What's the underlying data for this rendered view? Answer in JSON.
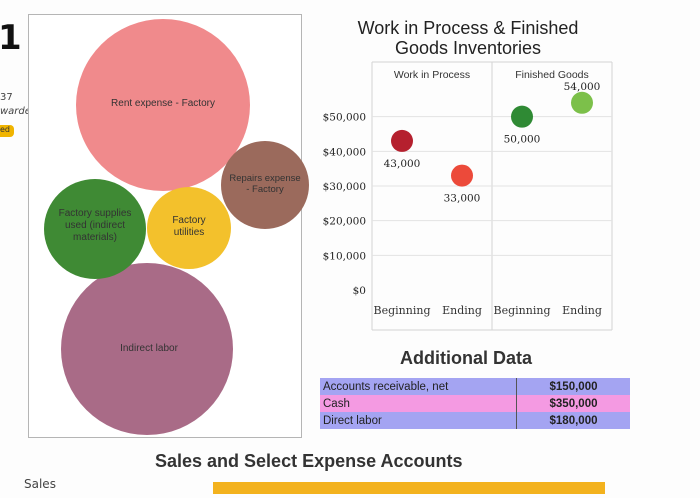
{
  "background_strip": {
    "partial_number": "1",
    "partial_count": "37",
    "partial_word": "warded",
    "badge_text": "ed",
    "sales_label": "Sales"
  },
  "colors": {
    "rent": "#f08a8c",
    "factory_supplies": "#3f8a34",
    "factory_utilities": "#f3c12c",
    "repairs": "#9b6a5c",
    "indirect_labor": "#a96b87",
    "wip_beginning": "#b5202e",
    "wip_ending": "#ec4a3a",
    "fg_beginning": "#2f8a34",
    "fg_ending": "#7cc04a",
    "row_1": "#a4a4f2",
    "row_2": "#f49ae2",
    "row_3": "#a4a4f2",
    "accent_bar": "#f3b21e"
  },
  "chart_data": [
    {
      "type": "bubble",
      "title": "",
      "series": [
        {
          "name": "Rent expense - Factory",
          "size": 1.0
        },
        {
          "name": "Factory supplies used (indirect materials)",
          "size": 0.35
        },
        {
          "name": "Factory utilities",
          "size": 0.24
        },
        {
          "name": "Repairs expense - Factory",
          "size": 0.27
        },
        {
          "name": "Indirect labor",
          "size": 1.0
        }
      ],
      "labels": {
        "rent": "Rent expense - Factory",
        "supplies": [
          "Factory supplies",
          "used (indirect",
          "materials)"
        ],
        "utilities": [
          "Factory",
          "utilities"
        ],
        "repairs": [
          "Repairs expense",
          "- Factory"
        ],
        "indirect": "Indirect labor"
      }
    },
    {
      "type": "scatter",
      "title_lines": [
        "Work in Process & Finished",
        "Goods Inventories"
      ],
      "groups": [
        "Work in Process",
        "Finished Goods"
      ],
      "categories": [
        "Beginning",
        "Ending",
        "Beginning",
        "Ending"
      ],
      "ylim": [
        0,
        60000
      ],
      "yticks": [
        "$0",
        "$10,000",
        "$20,000",
        "$30,000",
        "$40,000",
        "$50,000"
      ],
      "points": [
        {
          "group": "Work in Process",
          "x": "Beginning",
          "y": 43000,
          "label": "43,000",
          "color": "#b5202e"
        },
        {
          "group": "Work in Process",
          "x": "Ending",
          "y": 33000,
          "label": "33,000",
          "color": "#ec4a3a"
        },
        {
          "group": "Finished Goods",
          "x": "Beginning",
          "y": 50000,
          "label": "50,000",
          "color": "#2f8a34"
        },
        {
          "group": "Finished Goods",
          "x": "Ending",
          "y": 54000,
          "label": "54,000",
          "color": "#7cc04a"
        }
      ],
      "grid": true,
      "legend": "top"
    }
  ],
  "additional_data": {
    "title": "Additional Data",
    "rows": [
      {
        "label": "Accounts receivable, net",
        "value": "$150,000"
      },
      {
        "label": "Cash",
        "value": "$350,000"
      },
      {
        "label": "Direct labor",
        "value": "$180,000"
      }
    ]
  },
  "sales_section": {
    "title": "Sales and Select Expense Accounts"
  }
}
